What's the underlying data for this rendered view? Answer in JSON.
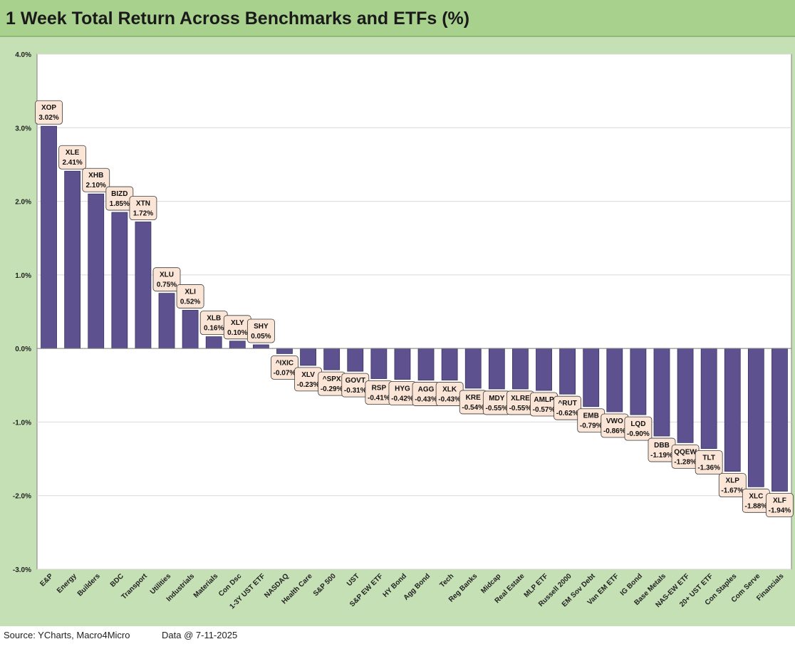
{
  "title": "1 Week Total Return Across Benchmarks and ETFs (%)",
  "footer": {
    "source": "Source: YCharts, Macro4Micro",
    "data_date": "Data @ 7-11-2025"
  },
  "colors": {
    "title_background": "#a9d18e",
    "panel_background": "#c5e0b4",
    "bar": "#5e5190",
    "label_background": "#fbe5d6"
  },
  "chart_data": {
    "type": "bar",
    "grid": true,
    "ylim": [
      -3.0,
      4.0
    ],
    "yticks": [
      -3.0,
      -2.0,
      -1.0,
      0.0,
      1.0,
      2.0,
      3.0,
      4.0
    ],
    "ytick_labels": [
      "-3.0%",
      "-2.0%",
      "-1.0%",
      "0.0%",
      "1.0%",
      "2.0%",
      "3.0%",
      "4.0%"
    ],
    "categories": [
      "E&P",
      "Energy",
      "Builders",
      "BDC",
      "Transport",
      "Utilities",
      "Industrials",
      "Materials",
      "Con Dsc",
      "1-3Y UST ETF",
      "NASDAQ",
      "Health Care",
      "S&P 500",
      "UST",
      "S&P EW ETF",
      "HY Bond",
      "Agg Bond",
      "Tech",
      "Reg Banks",
      "Midcap",
      "Real Estate",
      "MLP ETF",
      "Russell 2000",
      "EM Sov Debt",
      "Van EM ETF",
      "IG Bond",
      "Base Metals",
      "NAS-EW ETF",
      "20+ UST ETF",
      "Con Staples",
      "Com Serve",
      "Financials"
    ],
    "tickers": [
      "XOP",
      "XLE",
      "XHB",
      "BIZD",
      "XTN",
      "XLU",
      "XLI",
      "XLB",
      "XLY",
      "SHY",
      "^IXIC",
      "XLV",
      "^SPX",
      "GOVT",
      "RSP",
      "HYG",
      "AGG",
      "XLK",
      "KRE",
      "MDY",
      "XLRE",
      "AMLP",
      "^RUT",
      "EMB",
      "VWO",
      "LQD",
      "DBB",
      "QQEW",
      "TLT",
      "XLP",
      "XLC",
      "XLF"
    ],
    "value_labels": [
      "3.02%",
      "2.41%",
      "2.10%",
      "1.85%",
      "1.72%",
      "0.75%",
      "0.52%",
      "0.16%",
      "0.10%",
      "0.05%",
      "-0.07%",
      "-0.23%",
      "-0.29%",
      "-0.31%",
      "-0.41%",
      "-0.42%",
      "-0.43%",
      "-0.43%",
      "-0.54%",
      "-0.55%",
      "-0.55%",
      "-0.57%",
      "-0.62%",
      "-0.79%",
      "-0.86%",
      "-0.90%",
      "-1.19%",
      "-1.28%",
      "-1.36%",
      "-1.67%",
      "-1.88%",
      "-1.94%"
    ],
    "values": [
      3.02,
      2.41,
      2.1,
      1.85,
      1.72,
      0.75,
      0.52,
      0.16,
      0.1,
      0.05,
      -0.07,
      -0.23,
      -0.29,
      -0.31,
      -0.41,
      -0.42,
      -0.43,
      -0.43,
      -0.54,
      -0.55,
      -0.55,
      -0.57,
      -0.62,
      -0.79,
      -0.86,
      -0.9,
      -1.19,
      -1.28,
      -1.36,
      -1.67,
      -1.88,
      -1.94
    ]
  }
}
